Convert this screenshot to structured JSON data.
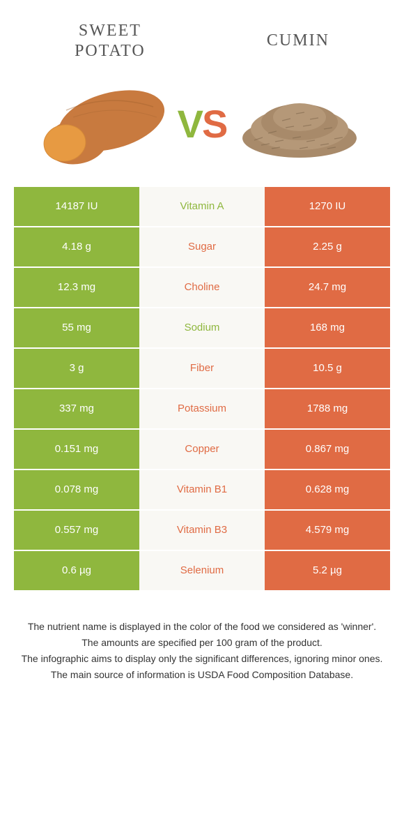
{
  "colors": {
    "left": "#8fb73e",
    "right": "#e06b44",
    "mid_bg": "#f9f8f4",
    "title_text": "#555555",
    "footer_text": "#333333"
  },
  "foods": {
    "left": {
      "name_line1": "SWEET",
      "name_line2": "POTATO"
    },
    "right": {
      "name": "CUMIN"
    }
  },
  "vs": {
    "v": "V",
    "s": "S"
  },
  "rows": [
    {
      "left": "14187 IU",
      "label": "Vitamin A",
      "right": "1270 IU",
      "winner": "left"
    },
    {
      "left": "4.18 g",
      "label": "Sugar",
      "right": "2.25 g",
      "winner": "right"
    },
    {
      "left": "12.3 mg",
      "label": "Choline",
      "right": "24.7 mg",
      "winner": "right"
    },
    {
      "left": "55 mg",
      "label": "Sodium",
      "right": "168 mg",
      "winner": "left"
    },
    {
      "left": "3 g",
      "label": "Fiber",
      "right": "10.5 g",
      "winner": "right"
    },
    {
      "left": "337 mg",
      "label": "Potassium",
      "right": "1788 mg",
      "winner": "right"
    },
    {
      "left": "0.151 mg",
      "label": "Copper",
      "right": "0.867 mg",
      "winner": "right"
    },
    {
      "left": "0.078 mg",
      "label": "Vitamin B1",
      "right": "0.628 mg",
      "winner": "right"
    },
    {
      "left": "0.557 mg",
      "label": "Vitamin B3",
      "right": "4.579 mg",
      "winner": "right"
    },
    {
      "left": "0.6 µg",
      "label": "Selenium",
      "right": "5.2 µg",
      "winner": "right"
    }
  ],
  "footer": {
    "line1": "The nutrient name is displayed in the color of the food we considered as 'winner'.",
    "line2": "The amounts are specified per 100 gram of the product.",
    "line3": "The infographic aims to display only the significant differences, ignoring minor ones.",
    "line4": "The main source of information is USDA Food Composition Database."
  }
}
